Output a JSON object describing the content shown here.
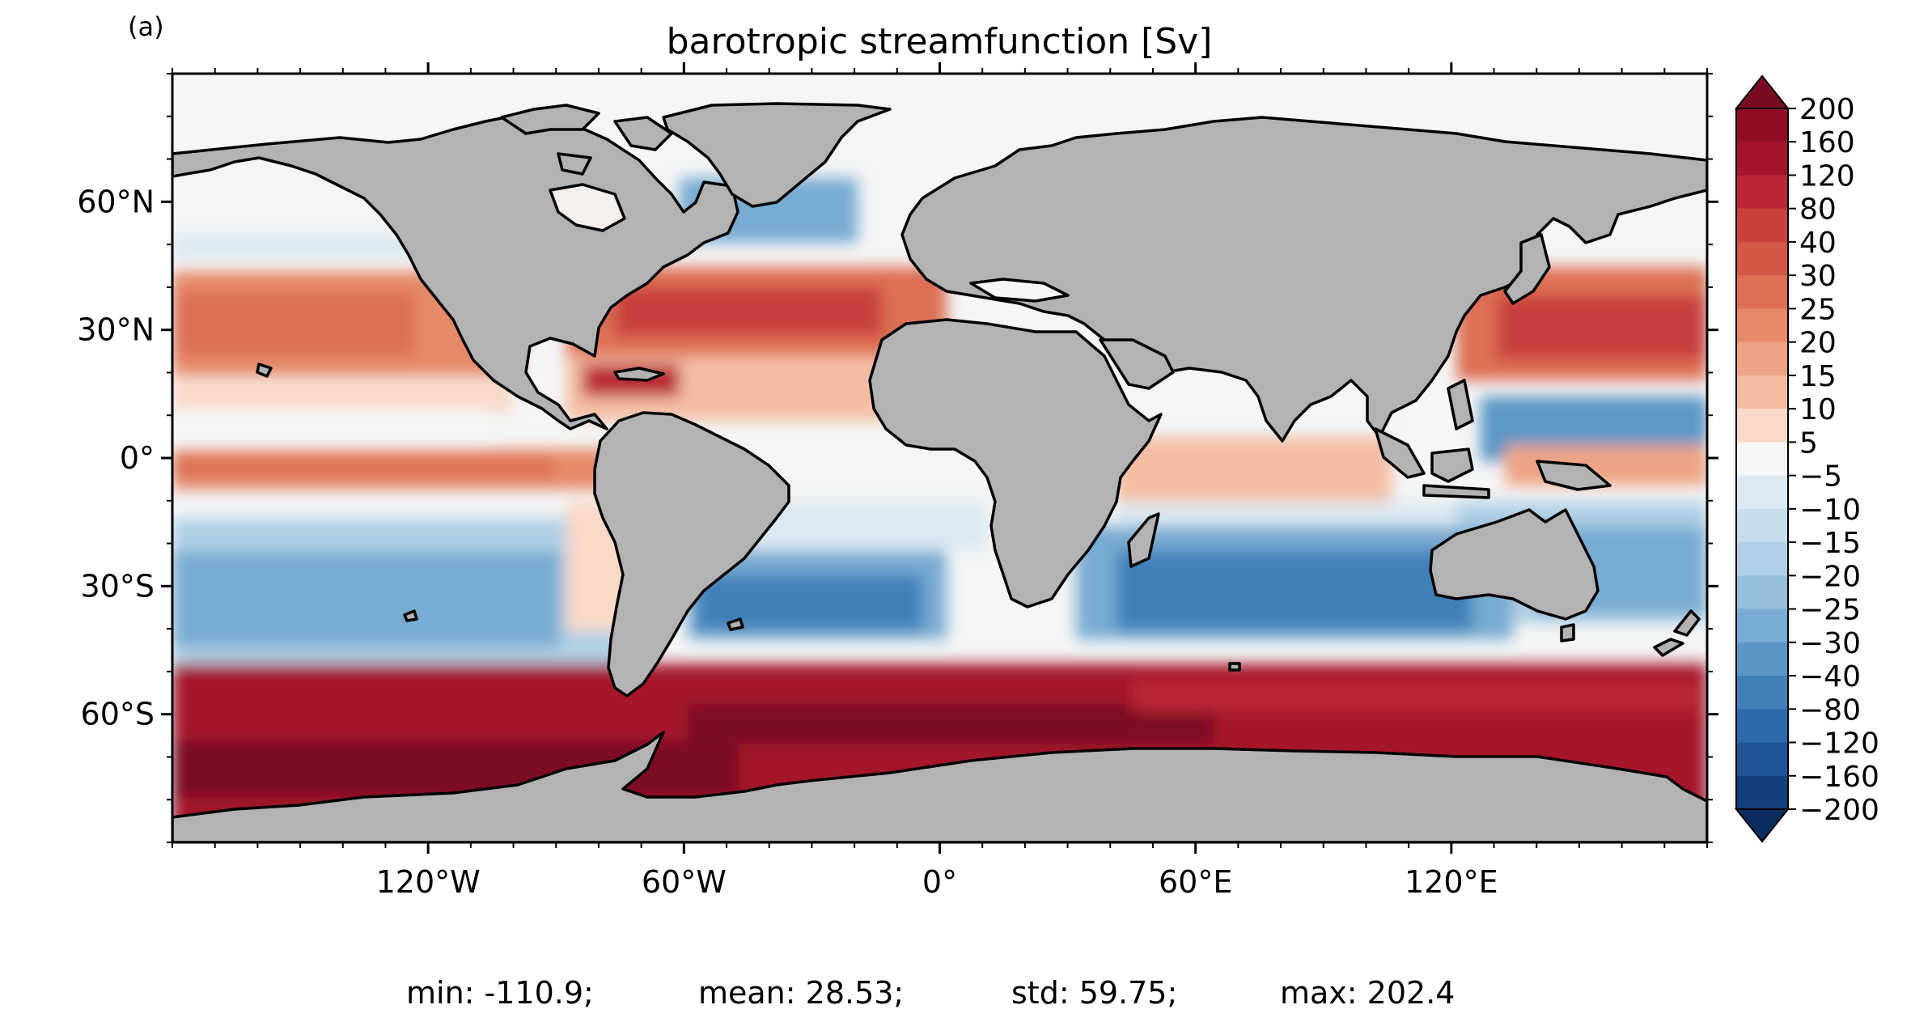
{
  "panel_label": "(a)",
  "title": "barotropic streamfunction [Sv]",
  "axes": {
    "lon_range": [
      -180,
      180
    ],
    "lat_range": [
      -90,
      90
    ],
    "lon_ticks": [
      {
        "value": -120,
        "label": "120°W"
      },
      {
        "value": -60,
        "label": "60°W"
      },
      {
        "value": 0,
        "label": "0°"
      },
      {
        "value": 60,
        "label": "60°E"
      },
      {
        "value": 120,
        "label": "120°E"
      }
    ],
    "lat_ticks": [
      {
        "value": 60,
        "label": "60°N"
      },
      {
        "value": 30,
        "label": "30°N"
      },
      {
        "value": 0,
        "label": "0°"
      },
      {
        "value": -30,
        "label": "30°S"
      },
      {
        "value": -60,
        "label": "60°S"
      }
    ]
  },
  "colorbar": {
    "labels": [
      "200",
      "160",
      "120",
      "80",
      "40",
      "30",
      "25",
      "20",
      "15",
      "10",
      "5",
      "−5",
      "−10",
      "−15",
      "−20",
      "−25",
      "−30",
      "−40",
      "−80",
      "−120",
      "−160",
      "−200"
    ],
    "colors": [
      "#7a0c22",
      "#8f0d25",
      "#a5142c",
      "#b92834",
      "#c8413d",
      "#d35847",
      "#dd7054",
      "#e68a6a",
      "#eea484",
      "#f4bda2",
      "#f9d9c8",
      "#f6f6f6",
      "#dde9f2",
      "#c8ddec",
      "#b0d0e5",
      "#95c0dc",
      "#78acd2",
      "#5b97c6",
      "#3f80b9",
      "#2c6aab",
      "#1f5596",
      "#133f7e",
      "#0b2c5e"
    ],
    "extend": "both"
  },
  "stats": {
    "min": "min: -110.9;",
    "mean": "mean: 28.53;",
    "std": "std: 59.75;",
    "max": "max: 202.4"
  }
}
